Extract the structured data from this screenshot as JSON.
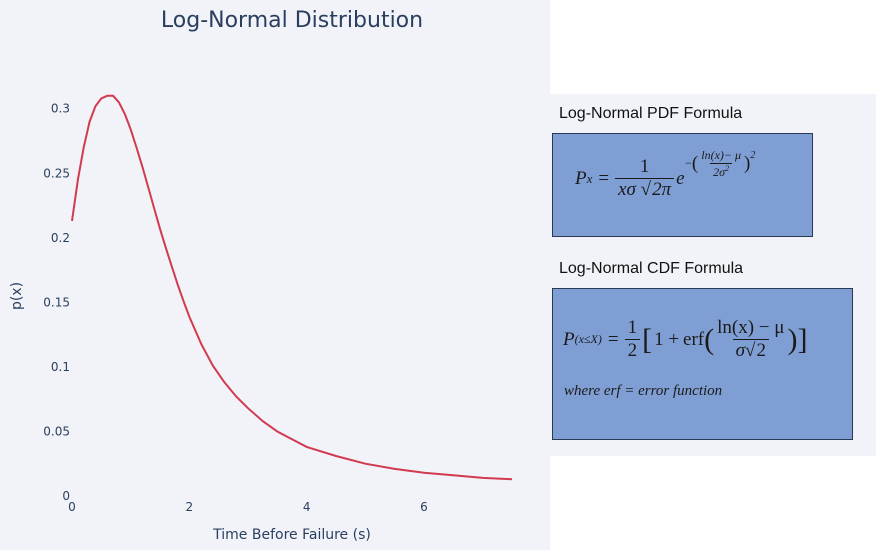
{
  "chart_data": {
    "type": "line",
    "title": "Log-Normal Distribution",
    "xlabel": "Time Before Failure (s)",
    "ylabel": "p(x)",
    "xlim": [
      0,
      7.5
    ],
    "ylim": [
      0,
      0.33
    ],
    "grid": false,
    "x_ticks": [
      0,
      2,
      4,
      6
    ],
    "y_ticks": [
      0,
      0.05,
      0.1,
      0.15,
      0.2,
      0.25,
      0.3
    ],
    "x_tick_labels": [
      "0",
      "2",
      "4",
      "6"
    ],
    "y_tick_labels": [
      "0",
      "0.05",
      "0.1",
      "0.15",
      "0.2",
      "0.25",
      "0.3"
    ],
    "series": [
      {
        "color": "#d23a4f",
        "x": [
          0.0,
          0.1,
          0.2,
          0.3,
          0.4,
          0.5,
          0.6,
          0.7,
          0.8,
          0.9,
          1.0,
          1.1,
          1.2,
          1.3,
          1.4,
          1.5,
          1.6,
          1.7,
          1.8,
          1.9,
          2.0,
          2.2,
          2.4,
          2.6,
          2.8,
          3.0,
          3.25,
          3.5,
          3.75,
          4.0,
          4.5,
          5.0,
          5.5,
          6.0,
          6.5,
          7.0,
          7.5
        ],
        "y": [
          0.213,
          0.245,
          0.27,
          0.29,
          0.302,
          0.308,
          0.31,
          0.31,
          0.305,
          0.296,
          0.284,
          0.27,
          0.255,
          0.239,
          0.223,
          0.207,
          0.192,
          0.178,
          0.164,
          0.151,
          0.139,
          0.118,
          0.101,
          0.088,
          0.077,
          0.068,
          0.058,
          0.05,
          0.044,
          0.038,
          0.031,
          0.025,
          0.021,
          0.018,
          0.016,
          0.014,
          0.013
        ]
      }
    ]
  },
  "formulas": {
    "pdf_heading": "Log-Normal PDF Formula",
    "cdf_heading": "Log-Normal CDF Formula",
    "pdf": {
      "lhs": "P",
      "lhs_sub": "x",
      "equals": "=",
      "num": "1",
      "den_a": "xσ",
      "den_sqrt": "2π",
      "base": "e",
      "exp_sign": "−",
      "exp_num": "ln(x)− μ",
      "exp_den": "2σ",
      "exp_den_pow": "2",
      "exp_pow": "2"
    },
    "cdf": {
      "lhs": "P",
      "lhs_sub": "(x≤X)",
      "equals": "=",
      "half_num": "1",
      "half_den": "2",
      "one_plus": "1 + ",
      "erf": "erf",
      "num": "ln(x) − μ",
      "den_a": "σ",
      "den_sqrt": "2"
    },
    "note": "where erf = error function"
  },
  "colors": {
    "panel_bg": "#f1f3f8",
    "formula_box_bg": "#7f9fd4",
    "text": "#2a3f5f"
  }
}
